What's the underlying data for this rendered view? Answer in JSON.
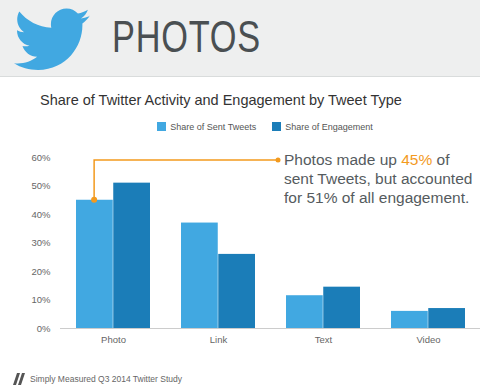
{
  "chart_data": {
    "type": "bar",
    "title": "PHOTOS",
    "subtitle": "Share of Twitter Activity and Engagement by Tweet Type",
    "caption": "Simply Measured Q3 2014 Twitter Study",
    "categories": [
      "Photo",
      "Link",
      "Text",
      "Video"
    ],
    "series": [
      {
        "name": "Share of Sent Tweets",
        "color": "#41a8e1",
        "values": [
          45,
          37,
          11.5,
          6
        ]
      },
      {
        "name": "Share of Engagement",
        "color": "#1b7db8",
        "values": [
          51,
          26,
          14.5,
          7
        ]
      }
    ],
    "ylim": [
      0,
      60
    ],
    "yticks": [
      {
        "value": 0,
        "label": "0%"
      },
      {
        "value": 10,
        "label": "10%"
      },
      {
        "value": 20,
        "label": "20%"
      },
      {
        "value": 30,
        "label": "30%"
      },
      {
        "value": 40,
        "label": "40%"
      },
      {
        "value": 50,
        "label": "50%"
      },
      {
        "value": 60,
        "label": "60%"
      }
    ],
    "grid": false,
    "legend": "top",
    "annotations": [
      {
        "text": "Photos made up 45% of sent Tweets, but accounted for 51% of all engagement.",
        "highlight": "45%",
        "category": "Photo"
      }
    ]
  }
}
